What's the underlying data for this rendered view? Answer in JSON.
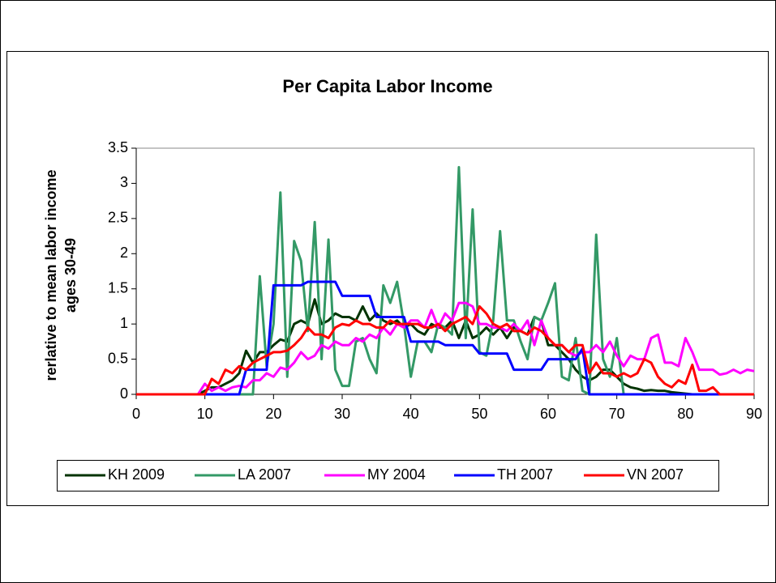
{
  "chart_data": {
    "type": "line",
    "title": "Per Capita Labor Income",
    "ylabel": [
      "rerlative to mean labor income",
      "ages 30-49"
    ],
    "x": [
      0,
      1,
      2,
      3,
      4,
      5,
      6,
      7,
      8,
      9,
      10,
      11,
      12,
      13,
      14,
      15,
      16,
      17,
      18,
      19,
      20,
      21,
      22,
      23,
      24,
      25,
      26,
      27,
      28,
      29,
      30,
      31,
      32,
      33,
      34,
      35,
      36,
      37,
      38,
      39,
      40,
      41,
      42,
      43,
      44,
      45,
      46,
      47,
      48,
      49,
      50,
      51,
      52,
      53,
      54,
      55,
      56,
      57,
      58,
      59,
      60,
      61,
      62,
      63,
      64,
      65,
      66,
      67,
      68,
      69,
      70,
      71,
      72,
      73,
      74,
      75,
      76,
      77,
      78,
      79,
      80,
      81,
      82,
      83,
      84,
      85,
      86,
      87,
      88,
      89,
      90
    ],
    "xlim": [
      0,
      90
    ],
    "xticks": [
      0,
      10,
      20,
      30,
      40,
      50,
      60,
      70,
      80,
      90
    ],
    "ylim": [
      0,
      3.5
    ],
    "yticks": [
      0,
      0.5,
      1,
      1.5,
      2,
      2.5,
      3,
      3.5
    ],
    "legend": "bottom",
    "series": [
      {
        "name": "KH 2009",
        "color": "#003300",
        "values": [
          0,
          0,
          0,
          0,
          0,
          0,
          0,
          0,
          0,
          0,
          0.05,
          0.1,
          0.1,
          0.15,
          0.2,
          0.3,
          0.62,
          0.45,
          0.6,
          0.6,
          0.7,
          0.78,
          0.75,
          1.0,
          1.05,
          1.0,
          1.35,
          1.0,
          1.05,
          1.15,
          1.1,
          1.1,
          1.05,
          1.25,
          1.05,
          1.15,
          1.05,
          1.0,
          1.05,
          0.95,
          1.0,
          0.9,
          0.85,
          1.0,
          0.95,
          0.95,
          1.05,
          0.8,
          1.05,
          0.8,
          0.85,
          0.95,
          0.85,
          0.95,
          0.8,
          0.95,
          0.9,
          0.85,
          1.1,
          1.05,
          0.7,
          0.7,
          0.6,
          0.5,
          0.35,
          0.25,
          0.2,
          0.25,
          0.35,
          0.35,
          0.25,
          0.15,
          0.1,
          0.08,
          0.05,
          0.06,
          0.05,
          0.05,
          0.03,
          0.02,
          0.01,
          0,
          0,
          0,
          0,
          0,
          0,
          0,
          0,
          0,
          0
        ]
      },
      {
        "name": "LA 2007",
        "color": "#339966",
        "values": [
          0,
          0,
          0,
          0,
          0,
          0,
          0,
          0,
          0,
          0,
          0,
          0,
          0,
          0,
          0,
          0,
          0,
          0,
          1.68,
          0.4,
          1.0,
          2.87,
          0.25,
          2.18,
          1.9,
          0.9,
          2.45,
          0.5,
          2.2,
          0.35,
          0.12,
          0.12,
          0.75,
          0.8,
          0.5,
          0.3,
          1.55,
          1.3,
          1.6,
          1.0,
          0.25,
          0.75,
          0.75,
          0.6,
          1.0,
          0.95,
          0.85,
          3.23,
          0.8,
          2.63,
          0.6,
          0.55,
          1.05,
          2.32,
          1.05,
          1.05,
          0.75,
          0.5,
          1.1,
          1.05,
          1.3,
          1.58,
          0.25,
          0.2,
          0.8,
          0.05,
          0,
          2.27,
          0.5,
          0.25,
          0.8,
          0,
          0,
          0,
          0,
          0,
          0,
          0,
          0,
          0,
          0,
          0,
          0,
          0,
          0,
          0,
          0,
          0,
          0,
          0,
          0
        ]
      },
      {
        "name": "MY 2004",
        "color": "#ff00ff",
        "values": [
          0,
          0,
          0,
          0,
          0,
          0,
          0,
          0,
          0,
          0,
          0.15,
          0.05,
          0.1,
          0.05,
          0.1,
          0.12,
          0.1,
          0.2,
          0.2,
          0.3,
          0.25,
          0.38,
          0.35,
          0.45,
          0.6,
          0.5,
          0.55,
          0.7,
          0.65,
          0.75,
          0.7,
          0.7,
          0.8,
          0.75,
          0.85,
          0.8,
          0.95,
          0.85,
          1.0,
          0.95,
          1.05,
          1.05,
          0.95,
          1.2,
          0.95,
          1.15,
          1.05,
          1.3,
          1.3,
          1.25,
          1.0,
          1.0,
          0.95,
          0.95,
          0.9,
          1.0,
          0.9,
          1.05,
          0.7,
          1.05,
          0.8,
          0.7,
          0.7,
          0.6,
          0.55,
          0.6,
          0.6,
          0.7,
          0.6,
          0.75,
          0.55,
          0.4,
          0.55,
          0.5,
          0.5,
          0.8,
          0.85,
          0.45,
          0.45,
          0.4,
          0.8,
          0.6,
          0.35,
          0.35,
          0.35,
          0.28,
          0.3,
          0.35,
          0.3,
          0.35,
          0.33
        ]
      },
      {
        "name": "TH 2007",
        "color": "#0000ff",
        "values": [
          0,
          0,
          0,
          0,
          0,
          0,
          0,
          0,
          0,
          0,
          0,
          0,
          0,
          0,
          0,
          0,
          0.35,
          0.35,
          0.35,
          0.35,
          1.55,
          1.55,
          1.55,
          1.55,
          1.55,
          1.6,
          1.6,
          1.6,
          1.6,
          1.6,
          1.4,
          1.4,
          1.4,
          1.4,
          1.4,
          1.1,
          1.1,
          1.1,
          1.1,
          1.1,
          0.75,
          0.75,
          0.75,
          0.75,
          0.75,
          0.7,
          0.7,
          0.7,
          0.7,
          0.7,
          0.58,
          0.58,
          0.58,
          0.58,
          0.58,
          0.35,
          0.35,
          0.35,
          0.35,
          0.35,
          0.5,
          0.5,
          0.5,
          0.5,
          0.5,
          0.65,
          0,
          0,
          0,
          0,
          0,
          0,
          0,
          0,
          0,
          0,
          0,
          0,
          0,
          0,
          0,
          0,
          0,
          0,
          0,
          0,
          0,
          0,
          0,
          0,
          0
        ]
      },
      {
        "name": "VN 2007",
        "color": "#ff0000",
        "values": [
          0,
          0,
          0,
          0,
          0,
          0,
          0,
          0,
          0,
          0,
          0,
          0.22,
          0.15,
          0.35,
          0.3,
          0.4,
          0.35,
          0.45,
          0.5,
          0.55,
          0.6,
          0.6,
          0.62,
          0.7,
          0.8,
          0.95,
          0.85,
          0.85,
          0.8,
          0.95,
          1.0,
          0.98,
          1.05,
          1.0,
          1.0,
          0.95,
          0.95,
          1.05,
          1.0,
          1.0,
          1.0,
          1.0,
          0.95,
          0.95,
          1.0,
          0.9,
          1.0,
          1.05,
          1.1,
          1.0,
          1.25,
          1.15,
          1.0,
          0.95,
          1.0,
          0.9,
          0.9,
          0.85,
          0.95,
          0.9,
          0.8,
          0.7,
          0.7,
          0.6,
          0.7,
          0.7,
          0.3,
          0.45,
          0.3,
          0.3,
          0.25,
          0.3,
          0.25,
          0.3,
          0.5,
          0.45,
          0.25,
          0.15,
          0.1,
          0.2,
          0.15,
          0.42,
          0.05,
          0.05,
          0.1,
          0,
          0,
          0,
          0,
          0,
          0
        ]
      }
    ]
  }
}
